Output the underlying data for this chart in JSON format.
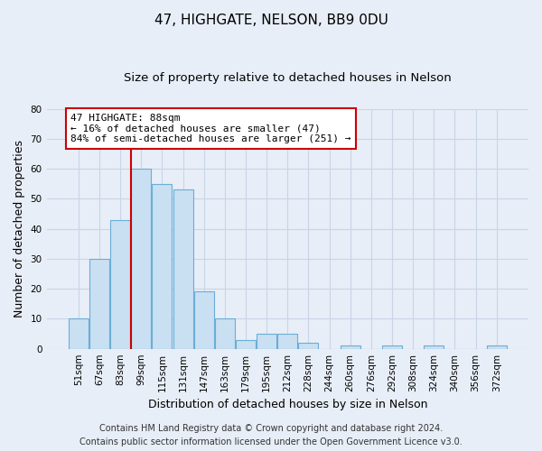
{
  "title": "47, HIGHGATE, NELSON, BB9 0DU",
  "subtitle": "Size of property relative to detached houses in Nelson",
  "xlabel": "Distribution of detached houses by size in Nelson",
  "ylabel": "Number of detached properties",
  "bar_labels": [
    "51sqm",
    "67sqm",
    "83sqm",
    "99sqm",
    "115sqm",
    "131sqm",
    "147sqm",
    "163sqm",
    "179sqm",
    "195sqm",
    "212sqm",
    "228sqm",
    "244sqm",
    "260sqm",
    "276sqm",
    "292sqm",
    "308sqm",
    "324sqm",
    "340sqm",
    "356sqm",
    "372sqm"
  ],
  "bar_values": [
    10,
    30,
    43,
    60,
    55,
    53,
    19,
    10,
    3,
    5,
    5,
    2,
    0,
    1,
    0,
    1,
    0,
    1,
    0,
    0,
    1
  ],
  "bar_color": "#c9dff2",
  "bar_edge_color": "#6aaed6",
  "vline_x_index": 2,
  "vline_color": "#cc0000",
  "annotation_line1": "47 HIGHGATE: 88sqm",
  "annotation_line2": "← 16% of detached houses are smaller (47)",
  "annotation_line3": "84% of semi-detached houses are larger (251) →",
  "annotation_box_edge": "#cc0000",
  "ylim": [
    0,
    80
  ],
  "yticks": [
    0,
    10,
    20,
    30,
    40,
    50,
    60,
    70,
    80
  ],
  "footer_line1": "Contains HM Land Registry data © Crown copyright and database right 2024.",
  "footer_line2": "Contains public sector information licensed under the Open Government Licence v3.0.",
  "bg_color": "#e8eef7",
  "plot_bg_color": "#e8eef7",
  "grid_color": "#c8d4e8",
  "title_fontsize": 11,
  "subtitle_fontsize": 9.5,
  "axis_label_fontsize": 9,
  "tick_fontsize": 7.5,
  "annotation_fontsize": 8,
  "footer_fontsize": 7
}
